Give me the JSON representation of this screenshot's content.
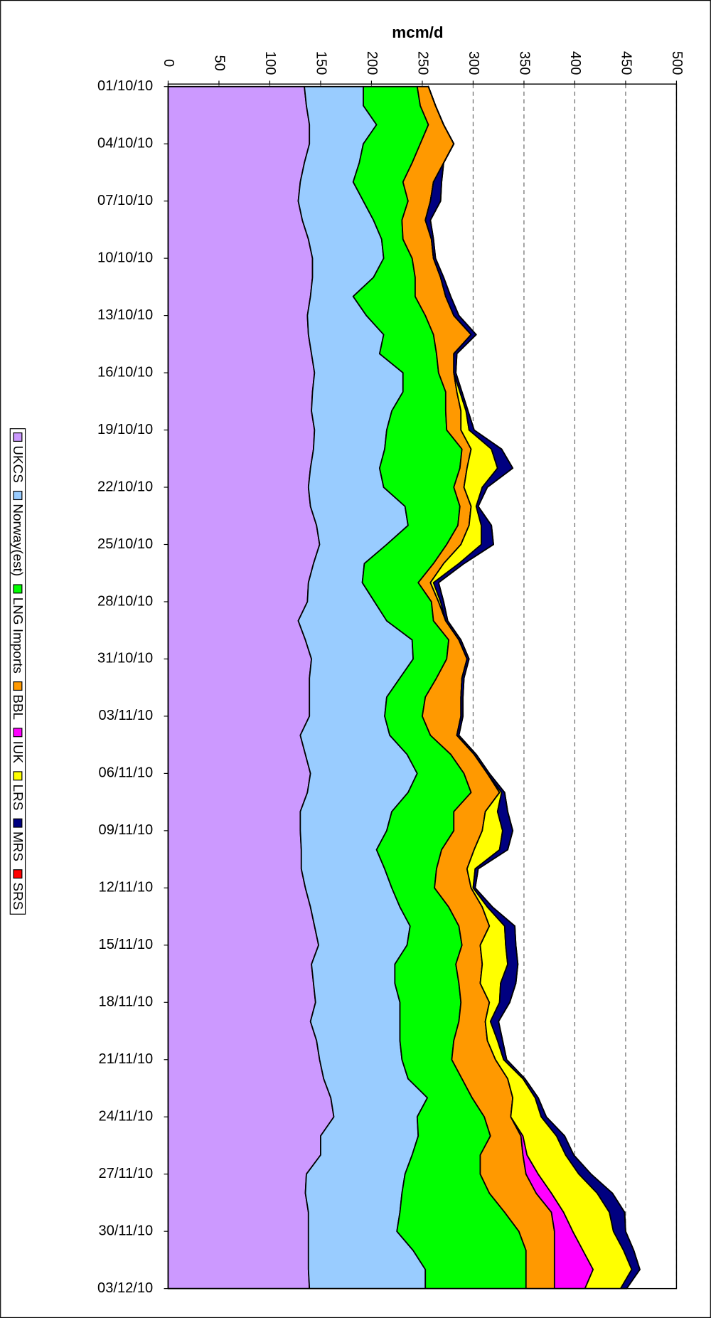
{
  "chart_data": {
    "type": "stacked_area",
    "orientation": "rotated",
    "title": "mcm/d",
    "categories": [
      "01/10/10",
      null,
      null,
      "04/10/10",
      null,
      null,
      "07/10/10",
      null,
      null,
      "10/10/10",
      null,
      null,
      "13/10/10",
      null,
      null,
      "16/10/10",
      null,
      null,
      "19/10/10",
      null,
      null,
      "22/10/10",
      null,
      null,
      "25/10/10",
      null,
      null,
      "28/10/10",
      null,
      null,
      "31/10/10",
      null,
      null,
      "03/11/10",
      null,
      null,
      "06/11/10",
      null,
      null,
      "09/11/10",
      null,
      null,
      "12/11/10",
      null,
      null,
      "15/11/10",
      null,
      null,
      "18/11/10",
      null,
      null,
      "21/11/10",
      null,
      null,
      "24/11/10",
      null,
      null,
      "27/11/10",
      null,
      null,
      "30/11/10",
      null,
      null,
      "03/12/10"
    ],
    "series": [
      {
        "name": "UKCS",
        "color": "#cc99ff",
        "values": [
          134,
          136,
          139,
          139,
          134,
          130,
          128,
          132,
          138,
          142,
          142,
          140,
          137,
          138,
          141,
          144,
          142,
          141,
          144,
          143,
          140,
          138,
          140,
          146,
          149,
          143,
          138,
          137,
          128,
          135,
          141,
          139,
          139,
          139,
          130,
          135,
          140,
          137,
          130,
          130,
          131,
          131,
          135,
          140,
          144,
          148,
          141,
          143,
          145,
          140,
          146,
          149,
          153,
          160,
          163,
          150,
          150,
          136,
          135,
          138,
          138,
          138,
          138,
          139
        ]
      },
      {
        "name": "Norway(est)",
        "color": "#99ccff",
        "values": [
          58,
          56,
          66,
          53,
          54,
          52,
          64,
          70,
          72,
          70,
          60,
          42,
          58,
          74,
          67,
          87,
          89,
          79,
          71,
          70,
          68,
          74,
          93,
          90,
          66,
          50,
          53,
          66,
          87,
          105,
          100,
          89,
          76,
          74,
          88,
          100,
          105,
          99,
          90,
          85,
          74,
          82,
          85,
          88,
          94,
          87,
          82,
          80,
          83,
          88,
          82,
          81,
          83,
          95,
          82,
          96,
          90,
          97,
          95,
          90,
          87,
          103,
          115,
          114
        ]
      },
      {
        "name": "LNG Imports",
        "color": "#00ff00",
        "values": [
          53,
          56,
          51,
          56,
          52,
          49,
          44,
          28,
          21,
          28,
          41,
          61,
          58,
          49,
          56,
          35,
          42,
          53,
          59,
          76,
          79,
          69,
          54,
          49,
          59,
          68,
          55,
          56,
          46,
          36,
          33,
          36,
          38,
          37,
          40,
          43,
          46,
          62,
          61,
          66,
          64,
          51,
          42,
          48,
          48,
          54,
          60,
          63,
          60,
          58,
          53,
          49,
          53,
          44,
          66,
          71,
          67,
          74,
          86,
          103,
          120,
          111,
          99,
          99
        ]
      },
      {
        "name": "BBL",
        "color": "#ff9900",
        "values": [
          11,
          15,
          15,
          33,
          31,
          30,
          22,
          23,
          28,
          21,
          25,
          30,
          28,
          37,
          17,
          15,
          11,
          15,
          14,
          9,
          7,
          10,
          11,
          11,
          14,
          10,
          12,
          7,
          12,
          10,
          20,
          25,
          35,
          38,
          26,
          23,
          23,
          28,
          31,
          28,
          32,
          30,
          36,
          33,
          30,
          18,
          26,
          21,
          28,
          26,
          33,
          43,
          45,
          40,
          26,
          30,
          42,
          45,
          46,
          46,
          35,
          28,
          28,
          28
        ]
      },
      {
        "name": "IUK",
        "color": "#ff00ff",
        "values": [
          0,
          0,
          0,
          0,
          0,
          0,
          0,
          0,
          0,
          0,
          0,
          0,
          0,
          0,
          0,
          0,
          0,
          0,
          0,
          0,
          0,
          0,
          0,
          0,
          0,
          0,
          0,
          0,
          0,
          0,
          0,
          0,
          0,
          0,
          0,
          0,
          0,
          0,
          0,
          0,
          0,
          0,
          0,
          0,
          0,
          0,
          0,
          0,
          0,
          0,
          0,
          0,
          0,
          0,
          0,
          2,
          4,
          12,
          15,
          12,
          18,
          28,
          38,
          30
        ]
      },
      {
        "name": "LRS",
        "color": "#ffff00",
        "values": [
          0,
          0,
          0,
          0,
          0,
          0,
          0,
          0,
          0,
          0,
          0,
          0,
          0,
          0,
          0,
          0,
          3,
          5,
          8,
          20,
          30,
          18,
          5,
          12,
          20,
          15,
          3,
          2,
          0,
          0,
          0,
          0,
          0,
          0,
          0,
          0,
          0,
          2,
          12,
          20,
          25,
          8,
          2,
          5,
          15,
          25,
          25,
          20,
          10,
          5,
          10,
          8,
          15,
          22,
          30,
          33,
          38,
          40,
          45,
          45,
          40,
          40,
          38,
          35
        ]
      },
      {
        "name": "MRS",
        "color": "#000080",
        "values": [
          0,
          0,
          0,
          0,
          0,
          8,
          10,
          5,
          2,
          2,
          3,
          5,
          5,
          5,
          3,
          2,
          2,
          2,
          5,
          10,
          15,
          5,
          2,
          10,
          12,
          5,
          5,
          3,
          2,
          2,
          2,
          2,
          2,
          2,
          2,
          2,
          2,
          3,
          10,
          10,
          8,
          3,
          2,
          5,
          10,
          10,
          10,
          15,
          10,
          8,
          5,
          3,
          2,
          3,
          5,
          8,
          8,
          12,
          15,
          15,
          12,
          10,
          8,
          6
        ]
      },
      {
        "name": "SRS",
        "color": "#ff0000",
        "values": [
          0,
          0,
          0,
          0,
          0,
          0,
          0,
          0,
          0,
          0,
          0,
          0,
          0,
          0,
          0,
          0,
          0,
          0,
          0,
          0,
          0,
          0,
          0,
          0,
          0,
          0,
          0,
          0,
          0,
          0,
          0,
          0,
          0,
          0,
          0,
          0,
          0,
          0,
          0,
          0,
          0,
          0,
          0,
          0,
          0,
          0,
          0,
          0,
          0,
          0,
          0,
          0,
          0,
          0,
          0,
          0,
          0,
          0,
          0,
          0,
          0,
          0,
          0,
          0
        ]
      }
    ],
    "ylim": [
      0,
      500
    ],
    "yticks": [
      0,
      50,
      100,
      150,
      200,
      250,
      300,
      350,
      400,
      450,
      500
    ],
    "grid": true,
    "grid_style": "dashed",
    "legend": "left"
  }
}
